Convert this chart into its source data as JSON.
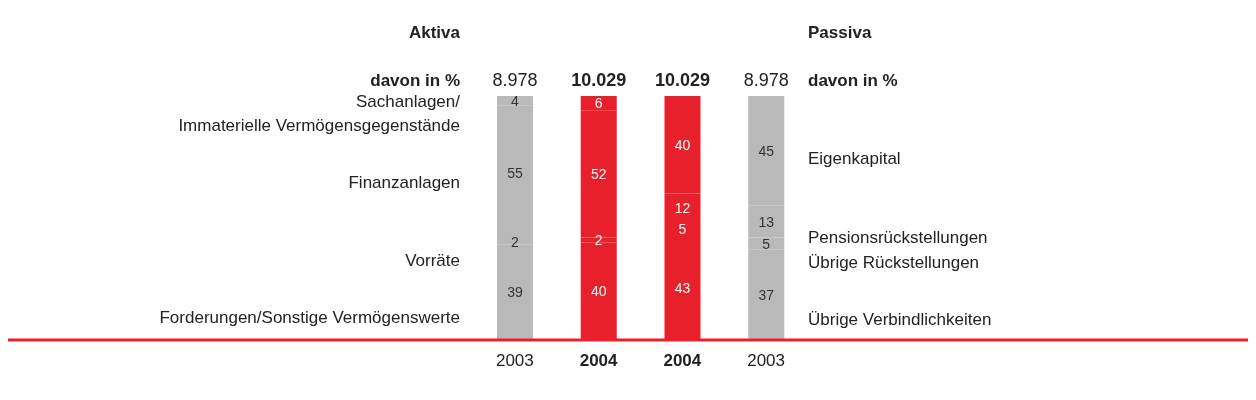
{
  "chart_data": {
    "type": "bar",
    "stacked": true,
    "data_labels": true,
    "categories": [
      "2003",
      "2004",
      "2004",
      "2003"
    ],
    "series": [
      {
        "colors": [
          "#b9b9b9",
          "#e8202c",
          "#e8202c",
          "#b9b9b9"
        ],
        "values": [
          39,
          40,
          43,
          37
        ]
      },
      {
        "colors": [
          "#b9b9b9",
          "#e8202c",
          "#e8202c",
          "#b9b9b9"
        ],
        "values": [
          2,
          2,
          5,
          5
        ]
      },
      {
        "colors": [
          "#b9b9b9",
          "#e8202c",
          "#e8202c",
          "#b9b9b9"
        ],
        "values": [
          55,
          52,
          12,
          13
        ]
      },
      {
        "colors": [
          "#b9b9b9",
          "#e8202c",
          "#e8202c",
          "#b9b9b9"
        ],
        "values": [
          4,
          6,
          40,
          45
        ]
      }
    ],
    "annotations": [
      "Aktiva",
      "Passiva",
      "davon in %",
      "davon in %",
      "Sachanlagen/ Immaterielle Vermögensgegenstände",
      "Finanzanlagen",
      "Vorräte",
      "Forderungen/Sonstige Vermögenswerte",
      "Eigenkapital",
      "Pensionsrückstellungen",
      "Übrige Rückstellungen",
      "Übrige Verbindlichkeiten",
      "8.978",
      "10.029",
      "10.029",
      "8.978"
    ]
  }
}
